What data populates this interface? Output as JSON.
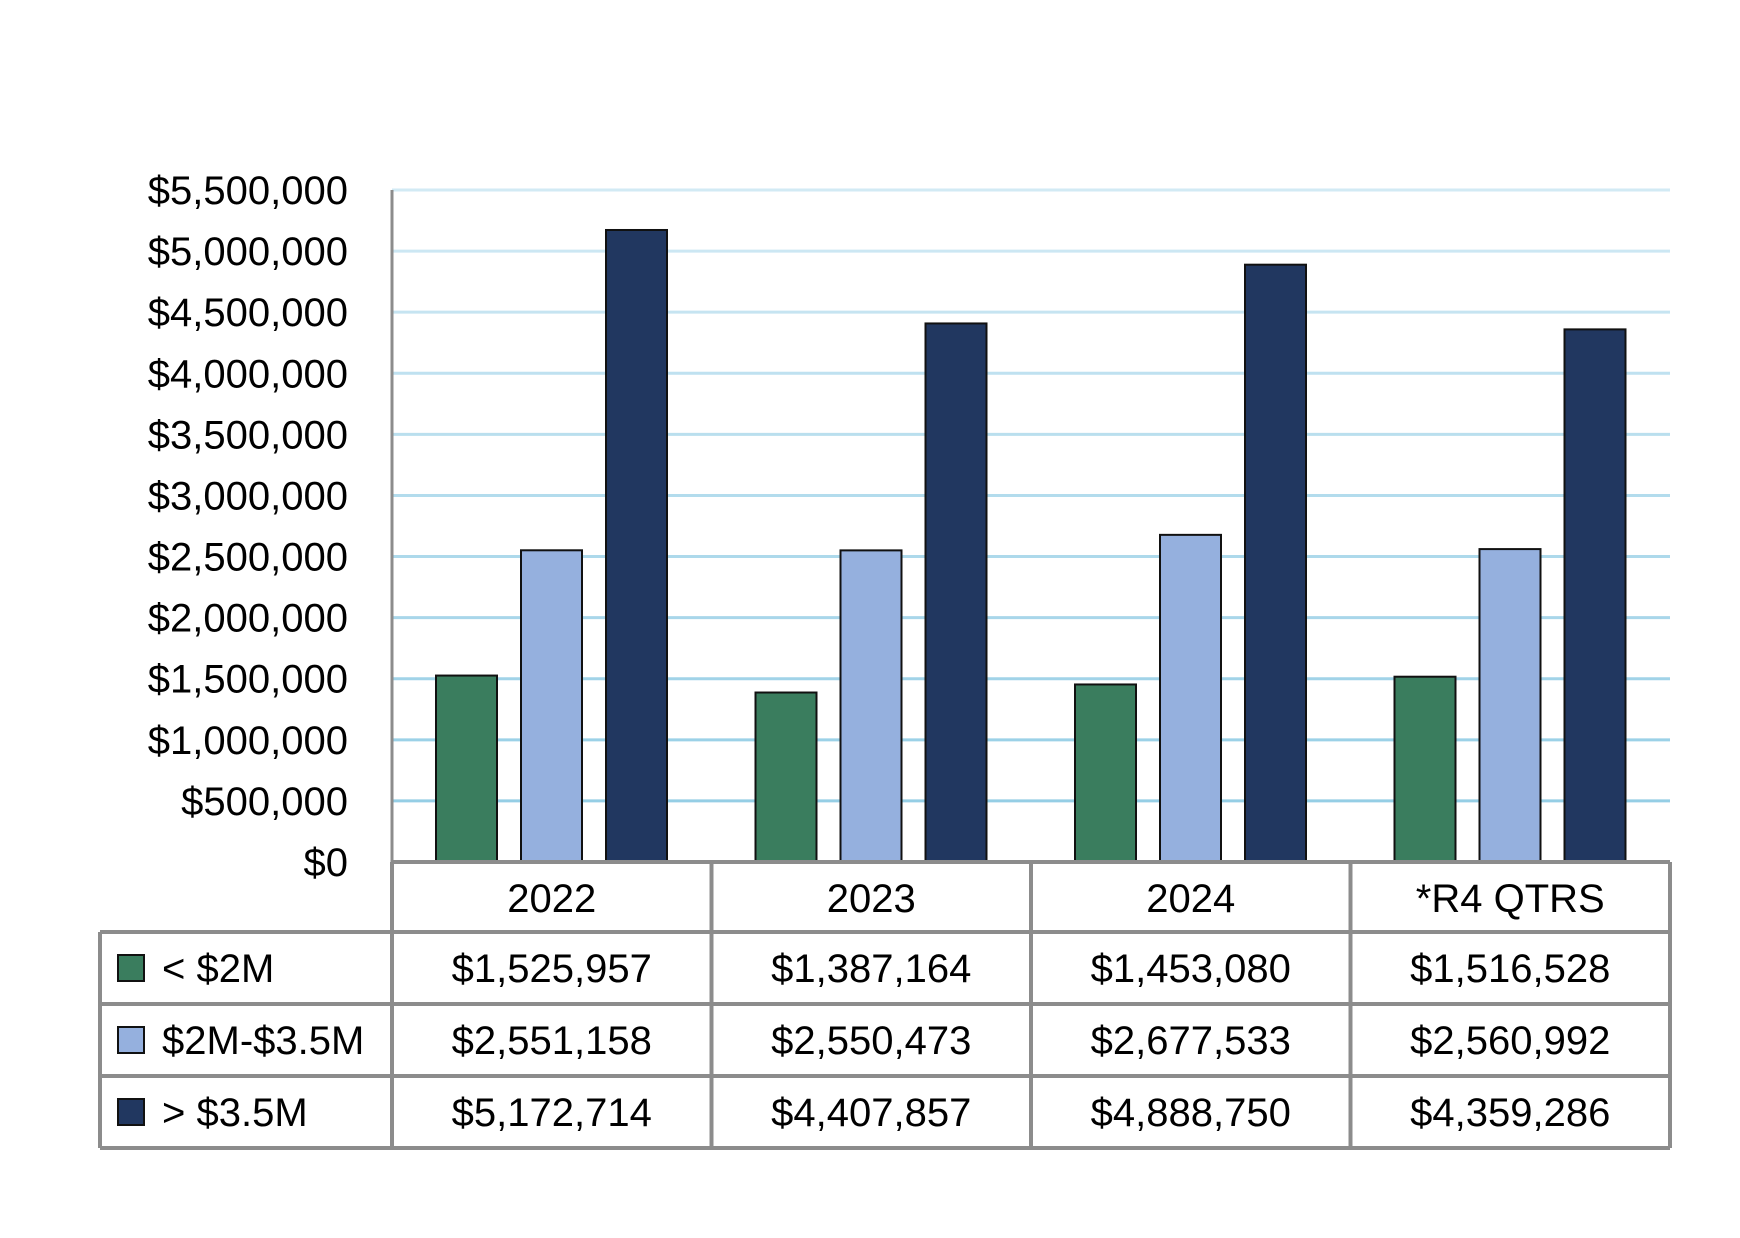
{
  "chart_data": {
    "type": "bar",
    "categories": [
      "2022",
      "2023",
      "2024",
      "*R4 QTRS"
    ],
    "series": [
      {
        "name": "< $2M",
        "values": [
          1525957,
          1387164,
          1453080,
          1516528
        ],
        "color": "#3a7d5e"
      },
      {
        "name": "$2M-$3.5M",
        "values": [
          2551158,
          2550473,
          2677533,
          2560992
        ],
        "color": "#95b0de"
      },
      {
        "name": "> $3.5M",
        "values": [
          5172714,
          4407857,
          4888750,
          4359286
        ],
        "color": "#213760"
      }
    ],
    "y_ticks": [
      "$0",
      "$500,000",
      "$1,000,000",
      "$1,500,000",
      "$2,000,000",
      "$2,500,000",
      "$3,000,000",
      "$3,500,000",
      "$4,000,000",
      "$4,500,000",
      "$5,000,000",
      "$5,500,000"
    ],
    "ylim": [
      0,
      5500000
    ],
    "title": "",
    "xlabel": "",
    "ylabel": "",
    "grid": true,
    "legend": "data-table",
    "data_table": {
      "rows": [
        [
          "$1,525,957",
          "$1,387,164",
          "$1,453,080",
          "$1,516,528"
        ],
        [
          "$2,551,158",
          "$2,550,473",
          "$2,677,533",
          "$2,560,992"
        ],
        [
          "$5,172,714",
          "$4,407,857",
          "$4,888,750",
          "$4,359,286"
        ]
      ]
    },
    "colors": {
      "grid": "#8fcbe4",
      "table_border": "#8c8c8c",
      "axis": "#8c8c8c"
    }
  }
}
